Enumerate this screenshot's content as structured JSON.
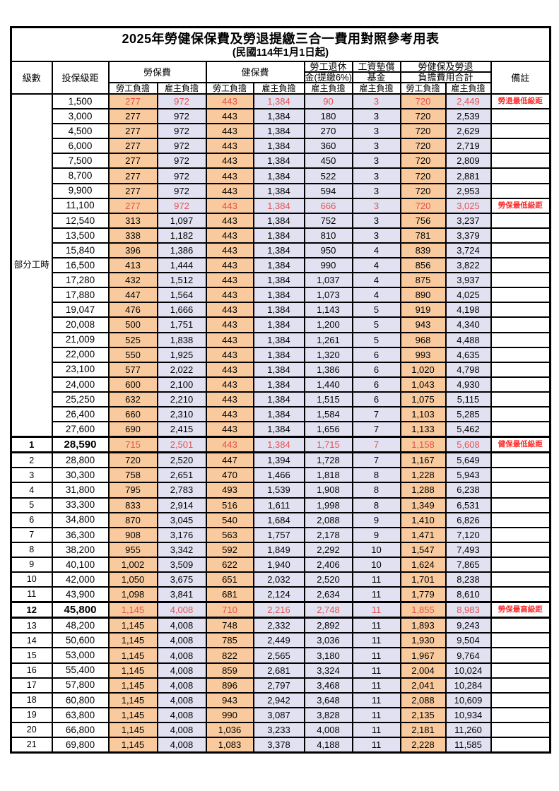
{
  "title": "2025年勞健保保費及勞退提繳三合一費用對照參考用表",
  "subtitle": "(民國114年1月1日起)",
  "colors": {
    "employee_bg": "#f8ca9e",
    "employer_bg": "#e1e1f1",
    "highlight_value": "#e5534f",
    "remark_red": "#fb2b2b"
  },
  "header": {
    "level": "級數",
    "bracket": "投保級距",
    "labor_fee": "勞保費",
    "health_fee": "健保費",
    "pension_l1": "勞工退休",
    "pension_l2": "金(提繳6%)",
    "fund_l1": "工資墊償",
    "fund_l2": "基金",
    "total_l1": "勞健保及勞退",
    "total_l2": "負擔費用合計",
    "remark": "備註",
    "employee_share": "勞工負擔",
    "employer_share": "雇主負擔"
  },
  "part_time_label": "部分工時",
  "part_time_row_count": 23,
  "rows": [
    {
      "level": "",
      "bracket": "1,500",
      "cells": [
        "277",
        "972",
        "443",
        "1,384",
        "90",
        "3",
        "720",
        "2,449"
      ],
      "remark": "勞退最低級距",
      "flag": "h"
    },
    {
      "level": "",
      "bracket": "3,000",
      "cells": [
        "277",
        "972",
        "443",
        "1,384",
        "180",
        "3",
        "720",
        "2,539"
      ],
      "remark": "",
      "flag": ""
    },
    {
      "level": "",
      "bracket": "4,500",
      "cells": [
        "277",
        "972",
        "443",
        "1,384",
        "270",
        "3",
        "720",
        "2,629"
      ],
      "remark": "",
      "flag": ""
    },
    {
      "level": "",
      "bracket": "6,000",
      "cells": [
        "277",
        "972",
        "443",
        "1,384",
        "360",
        "3",
        "720",
        "2,719"
      ],
      "remark": "",
      "flag": ""
    },
    {
      "level": "",
      "bracket": "7,500",
      "cells": [
        "277",
        "972",
        "443",
        "1,384",
        "450",
        "3",
        "720",
        "2,809"
      ],
      "remark": "",
      "flag": ""
    },
    {
      "level": "",
      "bracket": "8,700",
      "cells": [
        "277",
        "972",
        "443",
        "1,384",
        "522",
        "3",
        "720",
        "2,881"
      ],
      "remark": "",
      "flag": ""
    },
    {
      "level": "",
      "bracket": "9,900",
      "cells": [
        "277",
        "972",
        "443",
        "1,384",
        "594",
        "3",
        "720",
        "2,953"
      ],
      "remark": "",
      "flag": ""
    },
    {
      "level": "",
      "bracket": "11,100",
      "cells": [
        "277",
        "972",
        "443",
        "1,384",
        "666",
        "3",
        "720",
        "3,025"
      ],
      "remark": "勞保最低級距",
      "flag": "h"
    },
    {
      "level": "",
      "bracket": "12,540",
      "cells": [
        "313",
        "1,097",
        "443",
        "1,384",
        "752",
        "3",
        "756",
        "3,237"
      ],
      "remark": "",
      "flag": ""
    },
    {
      "level": "",
      "bracket": "13,500",
      "cells": [
        "338",
        "1,182",
        "443",
        "1,384",
        "810",
        "3",
        "781",
        "3,379"
      ],
      "remark": "",
      "flag": ""
    },
    {
      "level": "",
      "bracket": "15,840",
      "cells": [
        "396",
        "1,386",
        "443",
        "1,384",
        "950",
        "4",
        "839",
        "3,724"
      ],
      "remark": "",
      "flag": ""
    },
    {
      "level": "",
      "bracket": "16,500",
      "cells": [
        "413",
        "1,444",
        "443",
        "1,384",
        "990",
        "4",
        "856",
        "3,822"
      ],
      "remark": "",
      "flag": ""
    },
    {
      "level": "",
      "bracket": "17,280",
      "cells": [
        "432",
        "1,512",
        "443",
        "1,384",
        "1,037",
        "4",
        "875",
        "3,937"
      ],
      "remark": "",
      "flag": ""
    },
    {
      "level": "",
      "bracket": "17,880",
      "cells": [
        "447",
        "1,564",
        "443",
        "1,384",
        "1,073",
        "4",
        "890",
        "4,025"
      ],
      "remark": "",
      "flag": ""
    },
    {
      "level": "",
      "bracket": "19,047",
      "cells": [
        "476",
        "1,666",
        "443",
        "1,384",
        "1,143",
        "5",
        "919",
        "4,198"
      ],
      "remark": "",
      "flag": ""
    },
    {
      "level": "",
      "bracket": "20,008",
      "cells": [
        "500",
        "1,751",
        "443",
        "1,384",
        "1,200",
        "5",
        "943",
        "4,340"
      ],
      "remark": "",
      "flag": ""
    },
    {
      "level": "",
      "bracket": "21,009",
      "cells": [
        "525",
        "1,838",
        "443",
        "1,384",
        "1,261",
        "5",
        "968",
        "4,488"
      ],
      "remark": "",
      "flag": ""
    },
    {
      "level": "",
      "bracket": "22,000",
      "cells": [
        "550",
        "1,925",
        "443",
        "1,384",
        "1,320",
        "6",
        "993",
        "4,635"
      ],
      "remark": "",
      "flag": ""
    },
    {
      "level": "",
      "bracket": "23,100",
      "cells": [
        "577",
        "2,022",
        "443",
        "1,384",
        "1,386",
        "6",
        "1,020",
        "4,798"
      ],
      "remark": "",
      "flag": ""
    },
    {
      "level": "",
      "bracket": "24,000",
      "cells": [
        "600",
        "2,100",
        "443",
        "1,384",
        "1,440",
        "6",
        "1,043",
        "4,930"
      ],
      "remark": "",
      "flag": ""
    },
    {
      "level": "",
      "bracket": "25,250",
      "cells": [
        "632",
        "2,210",
        "443",
        "1,384",
        "1,515",
        "6",
        "1,075",
        "5,115"
      ],
      "remark": "",
      "flag": ""
    },
    {
      "level": "",
      "bracket": "26,400",
      "cells": [
        "660",
        "2,310",
        "443",
        "1,384",
        "1,584",
        "7",
        "1,103",
        "5,285"
      ],
      "remark": "",
      "flag": ""
    },
    {
      "level": "",
      "bracket": "27,600",
      "cells": [
        "690",
        "2,415",
        "443",
        "1,384",
        "1,656",
        "7",
        "1,133",
        "5,462"
      ],
      "remark": "",
      "flag": ""
    },
    {
      "level": "1",
      "bracket": "28,590",
      "cells": [
        "715",
        "2,501",
        "443",
        "1,384",
        "1,715",
        "7",
        "1,158",
        "5,608"
      ],
      "remark": "健保最低級距",
      "flag": "hb"
    },
    {
      "level": "2",
      "bracket": "28,800",
      "cells": [
        "720",
        "2,520",
        "447",
        "1,394",
        "1,728",
        "7",
        "1,167",
        "5,649"
      ],
      "remark": "",
      "flag": ""
    },
    {
      "level": "3",
      "bracket": "30,300",
      "cells": [
        "758",
        "2,651",
        "470",
        "1,466",
        "1,818",
        "8",
        "1,228",
        "5,943"
      ],
      "remark": "",
      "flag": ""
    },
    {
      "level": "4",
      "bracket": "31,800",
      "cells": [
        "795",
        "2,783",
        "493",
        "1,539",
        "1,908",
        "8",
        "1,288",
        "6,238"
      ],
      "remark": "",
      "flag": ""
    },
    {
      "level": "5",
      "bracket": "33,300",
      "cells": [
        "833",
        "2,914",
        "516",
        "1,611",
        "1,998",
        "8",
        "1,349",
        "6,531"
      ],
      "remark": "",
      "flag": ""
    },
    {
      "level": "6",
      "bracket": "34,800",
      "cells": [
        "870",
        "3,045",
        "540",
        "1,684",
        "2,088",
        "9",
        "1,410",
        "6,826"
      ],
      "remark": "",
      "flag": ""
    },
    {
      "level": "7",
      "bracket": "36,300",
      "cells": [
        "908",
        "3,176",
        "563",
        "1,757",
        "2,178",
        "9",
        "1,471",
        "7,120"
      ],
      "remark": "",
      "flag": ""
    },
    {
      "level": "8",
      "bracket": "38,200",
      "cells": [
        "955",
        "3,342",
        "592",
        "1,849",
        "2,292",
        "10",
        "1,547",
        "7,493"
      ],
      "remark": "",
      "flag": ""
    },
    {
      "level": "9",
      "bracket": "40,100",
      "cells": [
        "1,002",
        "3,509",
        "622",
        "1,940",
        "2,406",
        "10",
        "1,624",
        "7,865"
      ],
      "remark": "",
      "flag": ""
    },
    {
      "level": "10",
      "bracket": "42,000",
      "cells": [
        "1,050",
        "3,675",
        "651",
        "2,032",
        "2,520",
        "11",
        "1,701",
        "8,238"
      ],
      "remark": "",
      "flag": ""
    },
    {
      "level": "11",
      "bracket": "43,900",
      "cells": [
        "1,098",
        "3,841",
        "681",
        "2,124",
        "2,634",
        "11",
        "1,779",
        "8,610"
      ],
      "remark": "",
      "flag": ""
    },
    {
      "level": "12",
      "bracket": "45,800",
      "cells": [
        "1,145",
        "4,008",
        "710",
        "2,216",
        "2,748",
        "11",
        "1,855",
        "8,983"
      ],
      "remark": "勞保最高級距",
      "flag": "hb"
    },
    {
      "level": "13",
      "bracket": "48,200",
      "cells": [
        "1,145",
        "4,008",
        "748",
        "2,332",
        "2,892",
        "11",
        "1,893",
        "9,243"
      ],
      "remark": "",
      "flag": ""
    },
    {
      "level": "14",
      "bracket": "50,600",
      "cells": [
        "1,145",
        "4,008",
        "785",
        "2,449",
        "3,036",
        "11",
        "1,930",
        "9,504"
      ],
      "remark": "",
      "flag": ""
    },
    {
      "level": "15",
      "bracket": "53,000",
      "cells": [
        "1,145",
        "4,008",
        "822",
        "2,565",
        "3,180",
        "11",
        "1,967",
        "9,764"
      ],
      "remark": "",
      "flag": ""
    },
    {
      "level": "16",
      "bracket": "55,400",
      "cells": [
        "1,145",
        "4,008",
        "859",
        "2,681",
        "3,324",
        "11",
        "2,004",
        "10,024"
      ],
      "remark": "",
      "flag": ""
    },
    {
      "level": "17",
      "bracket": "57,800",
      "cells": [
        "1,145",
        "4,008",
        "896",
        "2,797",
        "3,468",
        "11",
        "2,041",
        "10,284"
      ],
      "remark": "",
      "flag": ""
    },
    {
      "level": "18",
      "bracket": "60,800",
      "cells": [
        "1,145",
        "4,008",
        "943",
        "2,942",
        "3,648",
        "11",
        "2,088",
        "10,609"
      ],
      "remark": "",
      "flag": ""
    },
    {
      "level": "19",
      "bracket": "63,800",
      "cells": [
        "1,145",
        "4,008",
        "990",
        "3,087",
        "3,828",
        "11",
        "2,135",
        "10,934"
      ],
      "remark": "",
      "flag": ""
    },
    {
      "level": "20",
      "bracket": "66,800",
      "cells": [
        "1,145",
        "4,008",
        "1,036",
        "3,233",
        "4,008",
        "11",
        "2,181",
        "11,260"
      ],
      "remark": "",
      "flag": ""
    },
    {
      "level": "21",
      "bracket": "69,800",
      "cells": [
        "1,145",
        "4,008",
        "1,083",
        "3,378",
        "4,188",
        "11",
        "2,228",
        "11,585"
      ],
      "remark": "",
      "flag": ""
    }
  ]
}
